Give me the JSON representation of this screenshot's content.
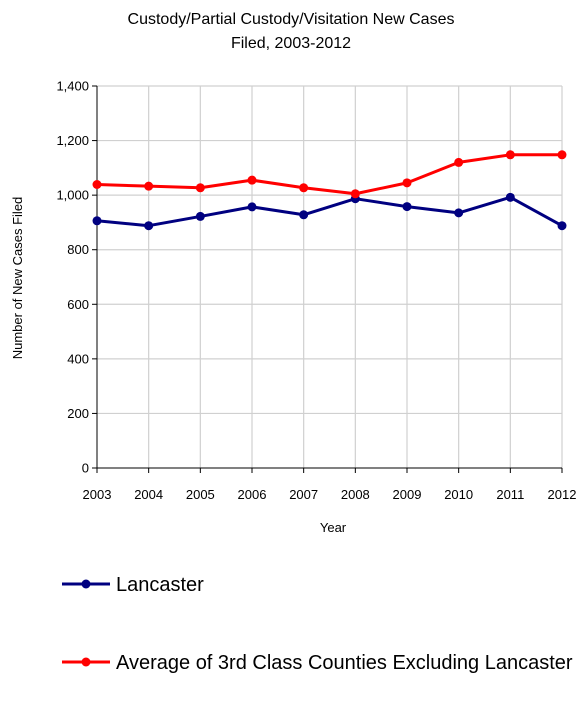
{
  "chart_data": {
    "type": "line",
    "title_line1": "Custody/Partial Custody/Visitation New Cases",
    "title_line2": "Filed, 2003-2012",
    "xlabel": "Year",
    "ylabel": "Number of New Cases Filed",
    "x": [
      "2003",
      "2004",
      "2005",
      "2006",
      "2007",
      "2008",
      "2009",
      "2010",
      "2011",
      "2012"
    ],
    "ylim": [
      0,
      1400
    ],
    "yticks": [
      0,
      200,
      400,
      600,
      800,
      1000,
      1200,
      1400
    ],
    "ytick_labels": [
      "0",
      "200",
      "400",
      "600",
      "800",
      "1,000",
      "1,200",
      "1,400"
    ],
    "grid": true,
    "legend_position": "bottom",
    "series": [
      {
        "name": "Lancaster",
        "color": "#000080",
        "values": [
          906,
          888,
          922,
          957,
          928,
          987,
          958,
          935,
          992,
          888
        ]
      },
      {
        "name": "Average of 3rd Class Counties Excluding Lancaster",
        "color": "#ff0000",
        "values": [
          1039,
          1033,
          1027,
          1055,
          1027,
          1005,
          1045,
          1120,
          1148,
          1148
        ]
      }
    ]
  }
}
